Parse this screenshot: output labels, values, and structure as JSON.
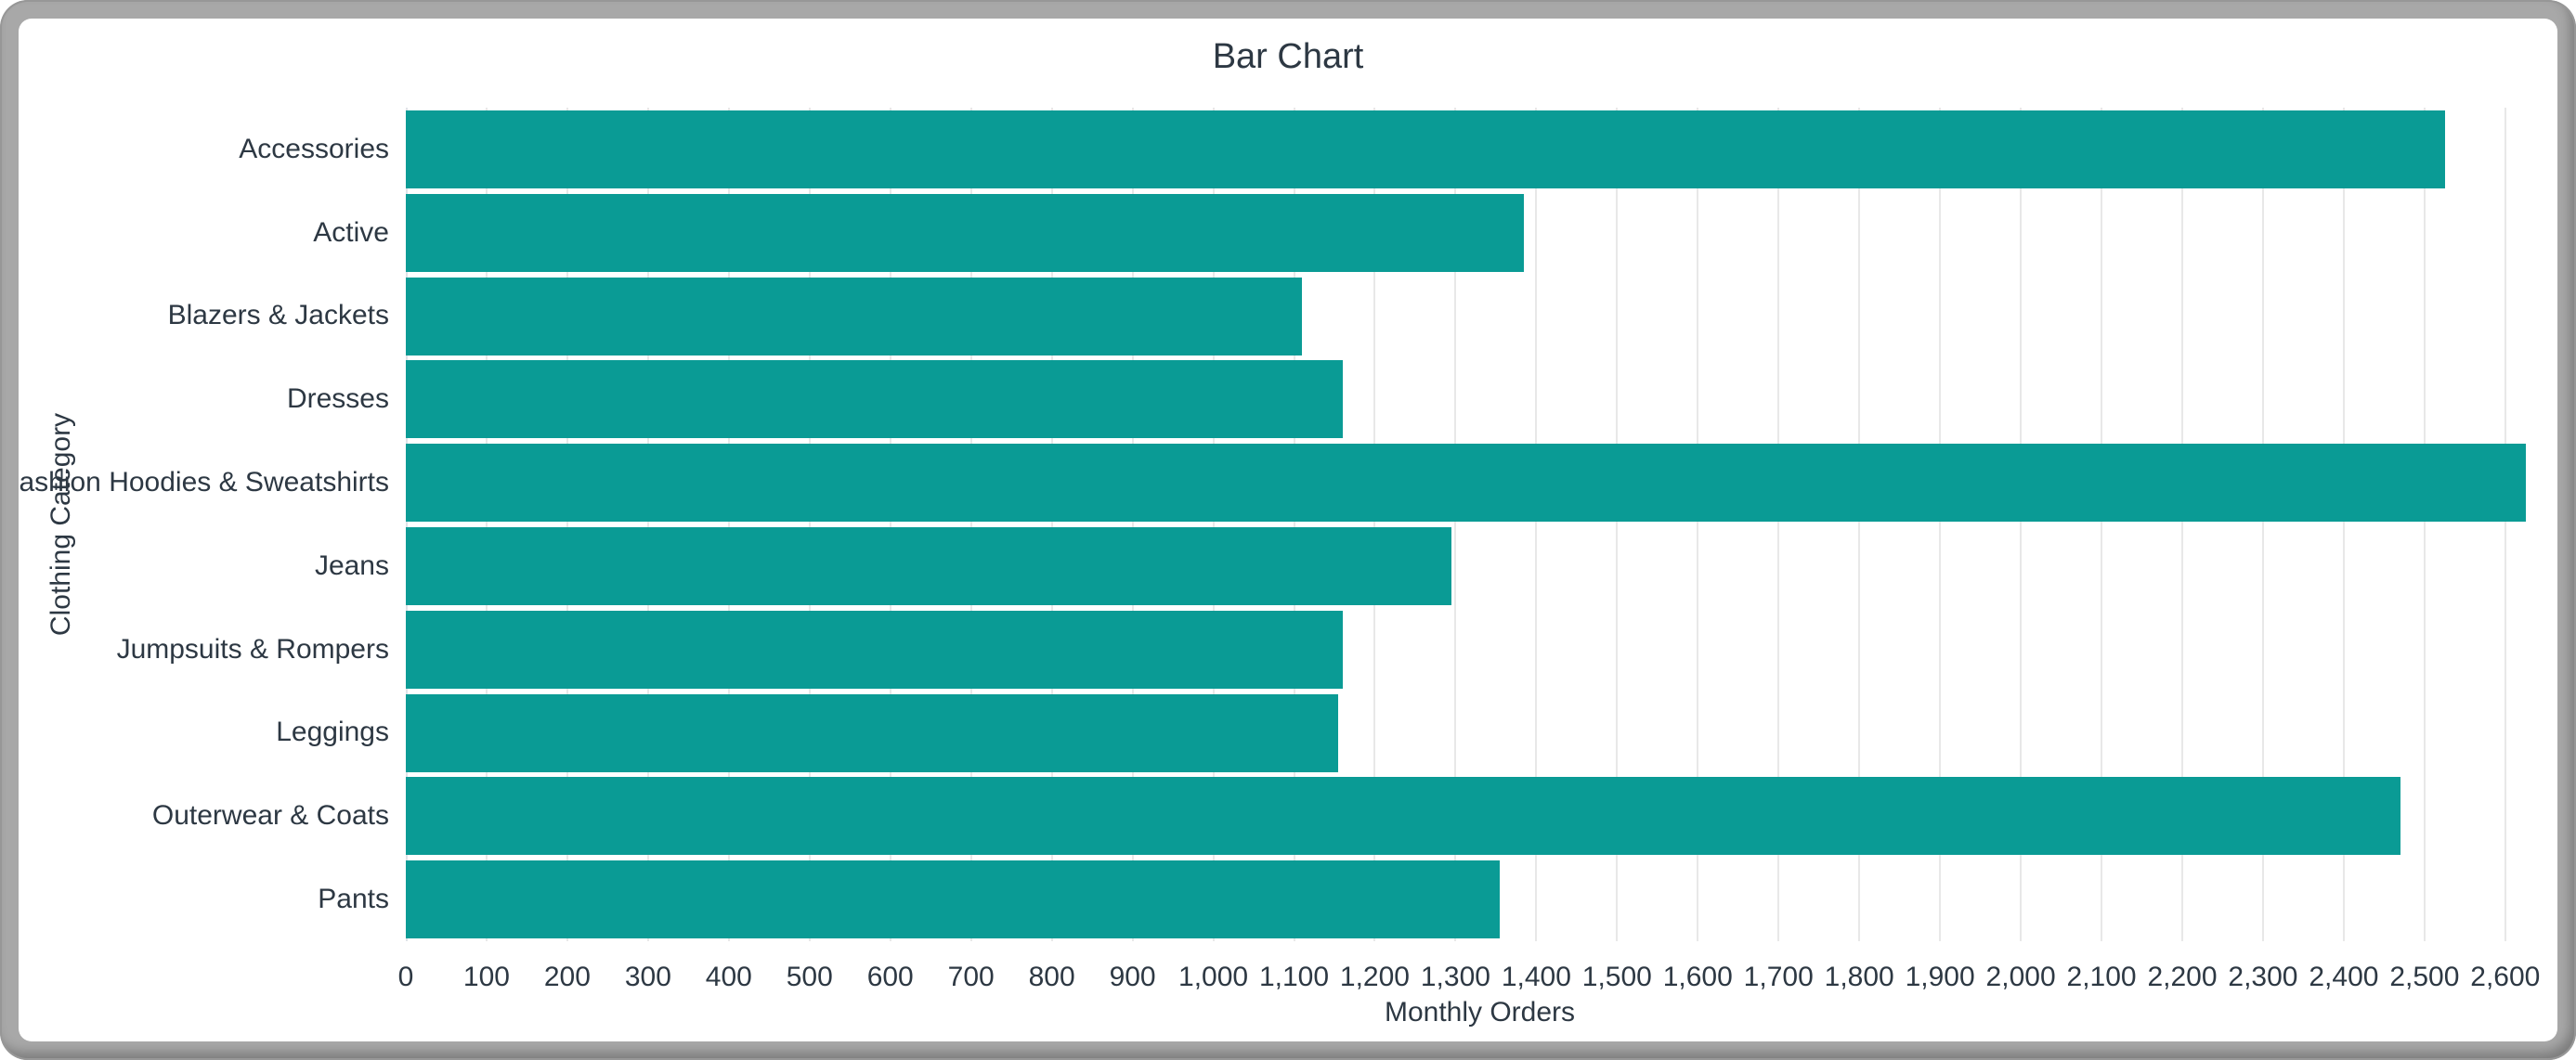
{
  "window": {
    "frame_color": "#a8a8a8",
    "card_color": "#ffffff"
  },
  "chart_data": {
    "type": "bar",
    "orientation": "horizontal",
    "title": "Bar Chart",
    "xlabel": "Monthly Orders",
    "ylabel": "Clothing Category",
    "categories": [
      "Accessories",
      "Active",
      "Blazers & Jackets",
      "Dresses",
      "Fashion Hoodies & Sweatshirts",
      "Jeans",
      "Jumpsuits & Rompers",
      "Leggings",
      "Outerwear & Coats",
      "Pants"
    ],
    "values": [
      2525,
      1385,
      1110,
      1160,
      2625,
      1295,
      1160,
      1155,
      2470,
      1355
    ],
    "xlim": [
      0,
      2660
    ],
    "xtick_step": 100,
    "xtick_max": 2600,
    "xtick_format": "comma",
    "grid": true,
    "legend": "none",
    "bar_color": "#0a9b95",
    "text_color": "#2d3843",
    "grid_color": "#e8e8e8",
    "spine_color": "#dfe3e8"
  }
}
